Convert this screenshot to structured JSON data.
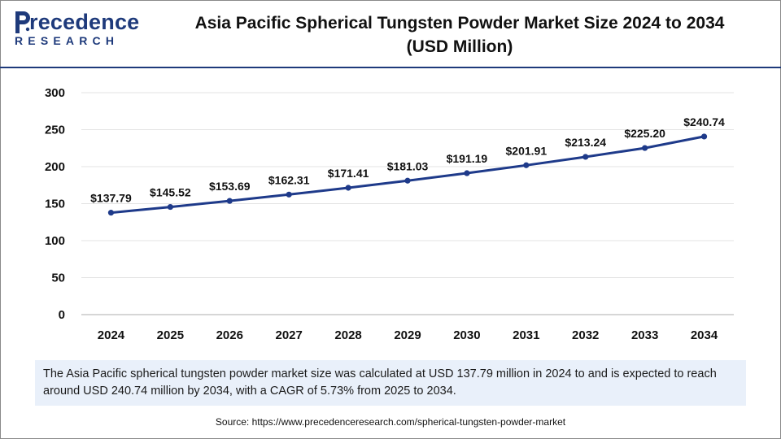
{
  "brand": {
    "name_initial": "P",
    "name_rest": "recedence",
    "sub": "RESEARCH"
  },
  "title_line1": "Asia Pacific Spherical Tungsten Powder Market Size 2024 to 2034",
  "title_line2": "(USD Million)",
  "chart_data": {
    "type": "line",
    "x": [
      "2024",
      "2025",
      "2026",
      "2027",
      "2028",
      "2029",
      "2030",
      "2031",
      "2032",
      "2033",
      "2034"
    ],
    "series": [
      {
        "values": [
          137.79,
          145.52,
          153.69,
          162.31,
          171.41,
          181.03,
          191.19,
          201.91,
          213.24,
          225.2,
          240.74
        ],
        "labels": [
          "$137.79",
          "$145.52",
          "$153.69",
          "$162.31",
          "$171.41",
          "$181.03",
          "$191.19",
          "$201.91",
          "$213.24",
          "$225.20",
          "$240.74"
        ],
        "color": "#1e3a8a"
      }
    ],
    "yticks": [
      0,
      50,
      100,
      150,
      200,
      250,
      300
    ],
    "ylim": [
      0,
      300
    ],
    "title": "",
    "xlabel": "",
    "ylabel": "",
    "grid": "horizontal"
  },
  "note": "The Asia Pacific spherical tungsten powder market size was calculated at USD 137.79 million in 2024 to and is expected to reach around USD 240.74 million by 2034, with a CAGR of 5.73% from 2025 to 2034.",
  "source": "Source: https://www.precedenceresearch.com/spherical-tungsten-powder-market",
  "colors": {
    "brand": "#1e3a7b",
    "line": "#1e3a8a",
    "note_bg": "#e9f0fa",
    "grid": "#e3e3e3"
  }
}
